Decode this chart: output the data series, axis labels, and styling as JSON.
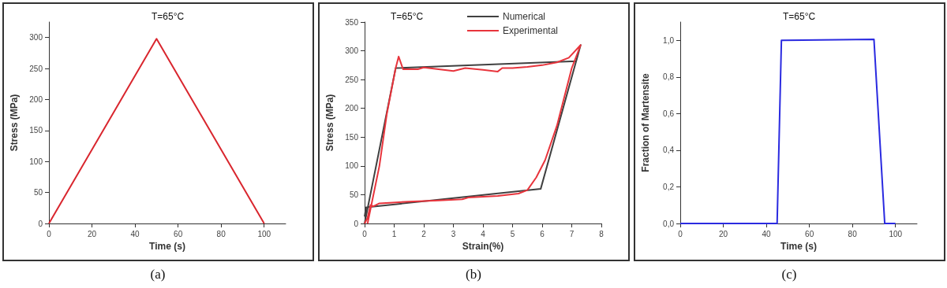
{
  "chart_data": [
    {
      "type": "line",
      "title": "T=65°C",
      "xlabel": "Time (s)",
      "ylabel": "Stress (MPa)",
      "annotations": [
        "(a)"
      ],
      "series": [
        {
          "color": "#d9262e",
          "x": [
            0,
            50,
            100
          ],
          "values": [
            0,
            298,
            0
          ]
        }
      ],
      "xlim": [
        0,
        110
      ],
      "xticks": [
        0,
        20,
        40,
        60,
        80,
        100
      ],
      "ylim": [
        0,
        325
      ],
      "yticks": [
        0,
        50,
        100,
        150,
        200,
        250,
        300
      ],
      "grid": false,
      "legend": false,
      "marker": "none",
      "line_style": "solid"
    },
    {
      "type": "line",
      "title": "T=65°C",
      "xlabel": "Strain(%)",
      "ylabel": "Stress (MPa)",
      "annotations": [
        "(b)"
      ],
      "series": [
        {
          "name": "Numerical",
          "color": "#404040",
          "x": [
            0,
            1.05,
            7.15,
            7.3,
            5.95,
            0.05,
            0
          ],
          "values": [
            0,
            270,
            282,
            310,
            60,
            28,
            12
          ]
        },
        {
          "name": "Experimental",
          "color": "#e8343c",
          "x": [
            0.1,
            0.5,
            0.75,
            1.05,
            1.15,
            1.3,
            1.8,
            2,
            2.5,
            3,
            3.4,
            4,
            4.5,
            4.65,
            5,
            5.5,
            6,
            6.5,
            6.9,
            7.3,
            7,
            6.5,
            6.1,
            5.8,
            5.5,
            5.2,
            4.5,
            3.5,
            3.3,
            2.5,
            1.5,
            0.5,
            0.3,
            0.2,
            0.1,
            0
          ],
          "values": [
            0,
            100,
            190,
            270,
            290,
            268,
            268,
            271,
            268,
            265,
            270,
            267,
            264,
            270,
            270,
            272,
            275,
            280,
            288,
            310,
            270,
            170,
            110,
            80,
            58,
            52,
            48,
            45,
            42,
            40,
            38,
            35,
            30,
            32,
            10,
            0
          ]
        }
      ],
      "xlim": [
        0,
        8
      ],
      "xticks": [
        0,
        1,
        2,
        3,
        4,
        5,
        6,
        7,
        8
      ],
      "ylim": [
        0,
        350
      ],
      "yticks": [
        0,
        50,
        100,
        150,
        200,
        250,
        300,
        350
      ],
      "grid": false,
      "legend": "top right",
      "marker": "none",
      "line_style": "solid"
    },
    {
      "type": "line",
      "title": "T=65°C",
      "xlabel": "Time (s)",
      "ylabel": "Fraction of Martensite",
      "annotations": [
        "(c)"
      ],
      "series": [
        {
          "color": "#2a2ae0",
          "x": [
            0,
            45,
            47,
            90,
            94.5,
            95,
            100
          ],
          "values": [
            0,
            0,
            1,
            1.005,
            0.1,
            0,
            0
          ]
        }
      ],
      "xlim": [
        0,
        110
      ],
      "xticks": [
        0,
        20,
        40,
        60,
        80,
        100
      ],
      "ylim": [
        0,
        1.1
      ],
      "yticks": [
        {
          "value": 0,
          "label": "0,0"
        },
        {
          "value": 0.2,
          "label": "0,2"
        },
        {
          "value": 0.4,
          "label": "0,4"
        },
        {
          "value": 0.6,
          "label": "0,6"
        },
        {
          "value": 0.8,
          "label": "0,8"
        },
        {
          "value": 1,
          "label": "1,0"
        }
      ],
      "grid": false,
      "legend": false,
      "marker": "none",
      "line_style": "solid"
    }
  ]
}
